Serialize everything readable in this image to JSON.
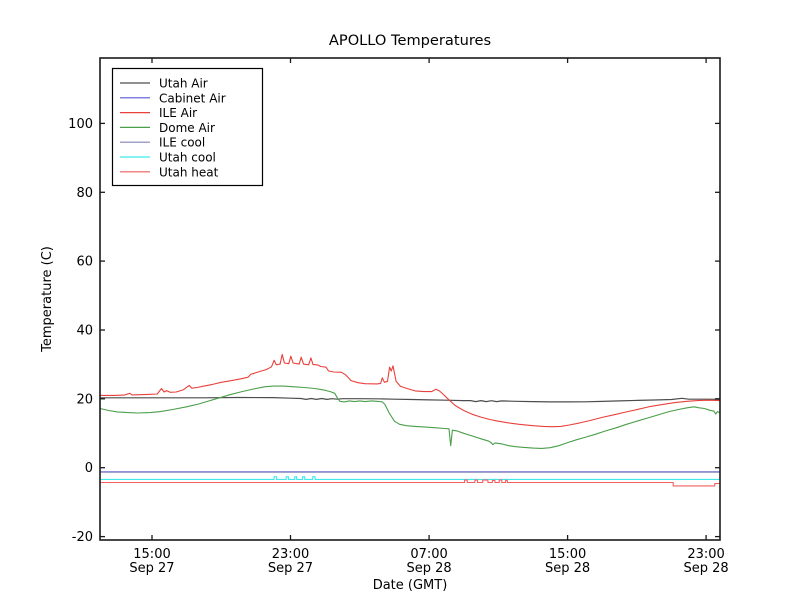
{
  "window": {
    "background": "#ffffff"
  },
  "chart_data": {
    "type": "line",
    "title": "APOLLO Temperatures",
    "xlabel": "Date (GMT)",
    "ylabel": "Temperature (C)",
    "x_unit": "hours since Sep 27 12:00 GMT",
    "xlim": [
      0,
      35.8
    ],
    "ylim": [
      -21,
      119
    ],
    "grid": false,
    "legend_position": "upper left",
    "frame_color": "#1a1a1a",
    "yticks": [
      -20,
      0,
      20,
      40,
      60,
      80,
      100
    ],
    "xticks": [
      {
        "value": 3,
        "time": "15:00",
        "date": "Sep 27"
      },
      {
        "value": 11,
        "time": "23:00",
        "date": "Sep 27"
      },
      {
        "value": 19,
        "time": "07:00",
        "date": "Sep 28"
      },
      {
        "value": 27,
        "time": "15:00",
        "date": "Sep 28"
      },
      {
        "value": 35,
        "time": "23:00",
        "date": "Sep 28"
      }
    ],
    "series": [
      {
        "name": "Utah Air",
        "color": "#4d4d4d",
        "width": 1.2,
        "points": [
          [
            0,
            20.3
          ],
          [
            3,
            20.3
          ],
          [
            6,
            20.3
          ],
          [
            8,
            20.4
          ],
          [
            10,
            20.35
          ],
          [
            11,
            20.2
          ],
          [
            11.6,
            20.1
          ],
          [
            11.9,
            19.85
          ],
          [
            12.2,
            20.1
          ],
          [
            12.5,
            19.85
          ],
          [
            12.8,
            20.1
          ],
          [
            13.1,
            19.85
          ],
          [
            13.4,
            20.05
          ],
          [
            13.7,
            19.9
          ],
          [
            14,
            20.05
          ],
          [
            15,
            20.05
          ],
          [
            16,
            20.0
          ],
          [
            17,
            19.9
          ],
          [
            18,
            19.8
          ],
          [
            19,
            19.7
          ],
          [
            20,
            19.6
          ],
          [
            21,
            19.5
          ],
          [
            21.4,
            19.5
          ],
          [
            21.7,
            19.2
          ],
          [
            22,
            19.5
          ],
          [
            22.3,
            19.2
          ],
          [
            22.6,
            19.45
          ],
          [
            22.9,
            19.2
          ],
          [
            23.2,
            19.4
          ],
          [
            24,
            19.3
          ],
          [
            25,
            19.2
          ],
          [
            26,
            19.1
          ],
          [
            27,
            19.1
          ],
          [
            28,
            19.15
          ],
          [
            29,
            19.25
          ],
          [
            30,
            19.4
          ],
          [
            31,
            19.55
          ],
          [
            32,
            19.65
          ],
          [
            33,
            19.8
          ],
          [
            33.6,
            20.15
          ],
          [
            34,
            19.9
          ],
          [
            35,
            19.9
          ],
          [
            35.8,
            19.85
          ]
        ]
      },
      {
        "name": "Cabinet Air",
        "color": "#5959d6",
        "width": 1,
        "points": [
          [
            0,
            -1.15
          ],
          [
            35.8,
            -1.15
          ]
        ]
      },
      {
        "name": "ILE Air",
        "color": "#e8413c",
        "width": 1.1,
        "points": [
          [
            0,
            21.0
          ],
          [
            0.8,
            21.0
          ],
          [
            1.4,
            21.1
          ],
          [
            1.72,
            21.6
          ],
          [
            1.85,
            21.15
          ],
          [
            2.3,
            21.2
          ],
          [
            2.8,
            21.3
          ],
          [
            3.3,
            21.4
          ],
          [
            3.55,
            23.0
          ],
          [
            3.7,
            22.0
          ],
          [
            3.85,
            22.4
          ],
          [
            4.05,
            21.9
          ],
          [
            4.4,
            22.0
          ],
          [
            4.8,
            22.6
          ],
          [
            5.15,
            23.9
          ],
          [
            5.3,
            23.1
          ],
          [
            5.6,
            23.3
          ],
          [
            6,
            23.7
          ],
          [
            6.5,
            24.2
          ],
          [
            7,
            24.8
          ],
          [
            7.6,
            25.3
          ],
          [
            8.1,
            25.8
          ],
          [
            8.55,
            26.3
          ],
          [
            8.7,
            27.1
          ],
          [
            9.2,
            27.9
          ],
          [
            9.6,
            28.5
          ],
          [
            9.9,
            29.3
          ],
          [
            10.05,
            31.2
          ],
          [
            10.18,
            29.9
          ],
          [
            10.4,
            30.1
          ],
          [
            10.52,
            32.9
          ],
          [
            10.65,
            30.4
          ],
          [
            10.9,
            30.2
          ],
          [
            11.02,
            32.4
          ],
          [
            11.15,
            30.4
          ],
          [
            11.5,
            30.1
          ],
          [
            11.62,
            32.1
          ],
          [
            11.75,
            30.1
          ],
          [
            12.05,
            29.9
          ],
          [
            12.18,
            31.9
          ],
          [
            12.3,
            30.0
          ],
          [
            12.6,
            29.8
          ],
          [
            12.75,
            29.4
          ],
          [
            13.05,
            29.2
          ],
          [
            13.2,
            28.1
          ],
          [
            13.5,
            27.8
          ],
          [
            13.95,
            27.7
          ],
          [
            14.2,
            26.9
          ],
          [
            14.5,
            25.3
          ],
          [
            14.9,
            24.7
          ],
          [
            15.3,
            24.4
          ],
          [
            16,
            24.35
          ],
          [
            16.2,
            24.5
          ],
          [
            16.3,
            26.1
          ],
          [
            16.42,
            24.8
          ],
          [
            16.6,
            25.1
          ],
          [
            16.72,
            29.2
          ],
          [
            16.82,
            28.1
          ],
          [
            16.92,
            29.6
          ],
          [
            17.1,
            25.1
          ],
          [
            17.35,
            23.6
          ],
          [
            17.8,
            22.9
          ],
          [
            18.2,
            22.3
          ],
          [
            18.7,
            22.1
          ],
          [
            19.15,
            22.1
          ],
          [
            19.4,
            22.8
          ],
          [
            19.6,
            22.3
          ],
          [
            19.8,
            21.4
          ],
          [
            20.05,
            20.2
          ],
          [
            20.5,
            18.1
          ],
          [
            21,
            16.6
          ],
          [
            21.5,
            15.5
          ],
          [
            22,
            14.7
          ],
          [
            22.5,
            14.0
          ],
          [
            23,
            13.5
          ],
          [
            23.6,
            13.0
          ],
          [
            24.2,
            12.6
          ],
          [
            25,
            12.2
          ],
          [
            25.6,
            12.0
          ],
          [
            26.1,
            11.9
          ],
          [
            26.6,
            12.0
          ],
          [
            27.1,
            12.4
          ],
          [
            27.7,
            13.0
          ],
          [
            28.3,
            13.7
          ],
          [
            29,
            14.6
          ],
          [
            29.7,
            15.4
          ],
          [
            30.4,
            16.2
          ],
          [
            31.1,
            17.0
          ],
          [
            31.8,
            17.8
          ],
          [
            32.5,
            18.4
          ],
          [
            33.2,
            18.9
          ],
          [
            33.9,
            19.3
          ],
          [
            34.5,
            19.5
          ],
          [
            35.1,
            19.6
          ],
          [
            35.8,
            19.5
          ]
        ]
      },
      {
        "name": "Dome Air",
        "color": "#4a9e4a",
        "width": 1.1,
        "points": [
          [
            0,
            17.2
          ],
          [
            0.5,
            16.6
          ],
          [
            1,
            16.2
          ],
          [
            1.6,
            16.0
          ],
          [
            2.2,
            15.9
          ],
          [
            2.9,
            16.0
          ],
          [
            3.5,
            16.3
          ],
          [
            4.2,
            16.9
          ],
          [
            5,
            17.7
          ],
          [
            5.7,
            18.5
          ],
          [
            6.3,
            19.4
          ],
          [
            6.9,
            20.3
          ],
          [
            7.5,
            21.2
          ],
          [
            8.2,
            22.1
          ],
          [
            8.9,
            22.9
          ],
          [
            9.5,
            23.5
          ],
          [
            10,
            23.7
          ],
          [
            10.6,
            23.7
          ],
          [
            11.2,
            23.5
          ],
          [
            11.8,
            23.3
          ],
          [
            12.4,
            23.0
          ],
          [
            12.9,
            22.6
          ],
          [
            13.3,
            22.1
          ],
          [
            13.55,
            21.6
          ],
          [
            13.7,
            20.3
          ],
          [
            13.85,
            19.3
          ],
          [
            14.1,
            19.1
          ],
          [
            14.4,
            19.4
          ],
          [
            14.7,
            19.2
          ],
          [
            15,
            19.4
          ],
          [
            15.3,
            19.2
          ],
          [
            15.7,
            19.4
          ],
          [
            16,
            19.3
          ],
          [
            16.3,
            19.1
          ],
          [
            16.45,
            18.4
          ],
          [
            16.7,
            15.9
          ],
          [
            17,
            13.5
          ],
          [
            17.3,
            12.6
          ],
          [
            17.7,
            12.2
          ],
          [
            18.2,
            12.0
          ],
          [
            18.8,
            11.8
          ],
          [
            19.4,
            11.6
          ],
          [
            19.9,
            11.4
          ],
          [
            20.15,
            11.3
          ],
          [
            20.25,
            6.4
          ],
          [
            20.35,
            10.9
          ],
          [
            20.6,
            10.7
          ],
          [
            21,
            10.0
          ],
          [
            21.5,
            9.2
          ],
          [
            22,
            8.4
          ],
          [
            22.45,
            7.7
          ],
          [
            22.58,
            7.3
          ],
          [
            22.68,
            6.7
          ],
          [
            22.82,
            7.2
          ],
          [
            23.2,
            6.9
          ],
          [
            23.6,
            6.4
          ],
          [
            24,
            6.1
          ],
          [
            24.5,
            5.9
          ],
          [
            25,
            5.7
          ],
          [
            25.5,
            5.6
          ],
          [
            26,
            5.8
          ],
          [
            26.5,
            6.4
          ],
          [
            27,
            7.3
          ],
          [
            27.5,
            8.1
          ],
          [
            28,
            8.8
          ],
          [
            28.6,
            9.7
          ],
          [
            29.2,
            10.7
          ],
          [
            29.8,
            11.6
          ],
          [
            30.4,
            12.6
          ],
          [
            31,
            13.5
          ],
          [
            31.6,
            14.4
          ],
          [
            32.2,
            15.3
          ],
          [
            32.8,
            16.2
          ],
          [
            33.4,
            16.9
          ],
          [
            33.9,
            17.4
          ],
          [
            34.3,
            17.7
          ],
          [
            34.6,
            17.4
          ],
          [
            34.9,
            17.2
          ],
          [
            35.2,
            16.7
          ],
          [
            35.45,
            16.4
          ],
          [
            35.55,
            15.6
          ],
          [
            35.65,
            16.3
          ],
          [
            35.8,
            16.0
          ]
        ]
      },
      {
        "name": "ILE cool",
        "color": "#8484bc",
        "width": 1.1,
        "points": [
          [
            0,
            -1.3
          ],
          [
            35.8,
            -1.3
          ]
        ]
      },
      {
        "name": "Utah cool",
        "color": "#3fe9e9",
        "width": 1.1,
        "points": [
          [
            0,
            -3.4
          ],
          [
            10.05,
            -3.4
          ],
          [
            10.05,
            -2.6
          ],
          [
            10.2,
            -2.6
          ],
          [
            10.2,
            -3.4
          ],
          [
            10.75,
            -3.4
          ],
          [
            10.75,
            -2.6
          ],
          [
            10.88,
            -2.6
          ],
          [
            10.88,
            -3.4
          ],
          [
            11.25,
            -3.4
          ],
          [
            11.25,
            -2.6
          ],
          [
            11.35,
            -2.6
          ],
          [
            11.35,
            -3.4
          ],
          [
            11.7,
            -3.4
          ],
          [
            11.7,
            -2.6
          ],
          [
            11.82,
            -2.6
          ],
          [
            11.82,
            -3.4
          ],
          [
            12.28,
            -3.4
          ],
          [
            12.28,
            -2.6
          ],
          [
            12.42,
            -2.6
          ],
          [
            12.42,
            -3.4
          ],
          [
            35.8,
            -3.4
          ]
        ]
      },
      {
        "name": "Utah heat",
        "color": "#f25f5f",
        "width": 1.1,
        "points": [
          [
            0,
            -4.3
          ],
          [
            21.05,
            -4.3
          ],
          [
            21.05,
            -3.6
          ],
          [
            21.2,
            -3.6
          ],
          [
            21.2,
            -4.3
          ],
          [
            21.65,
            -4.3
          ],
          [
            21.65,
            -3.6
          ],
          [
            21.8,
            -3.6
          ],
          [
            21.8,
            -4.3
          ],
          [
            22.1,
            -4.3
          ],
          [
            22.1,
            -3.6
          ],
          [
            22.4,
            -3.6
          ],
          [
            22.4,
            -4.3
          ],
          [
            22.65,
            -4.3
          ],
          [
            22.65,
            -3.7
          ],
          [
            22.8,
            -3.7
          ],
          [
            22.8,
            -4.3
          ],
          [
            23.05,
            -4.3
          ],
          [
            23.05,
            -3.6
          ],
          [
            23.2,
            -3.6
          ],
          [
            23.2,
            -4.3
          ],
          [
            23.42,
            -4.3
          ],
          [
            23.42,
            -3.65
          ],
          [
            23.52,
            -3.65
          ],
          [
            23.52,
            -4.3
          ],
          [
            33.1,
            -4.3
          ],
          [
            33.1,
            -5.3
          ],
          [
            35.5,
            -5.3
          ],
          [
            35.5,
            -4.6
          ],
          [
            35.8,
            -4.6
          ]
        ]
      }
    ]
  }
}
